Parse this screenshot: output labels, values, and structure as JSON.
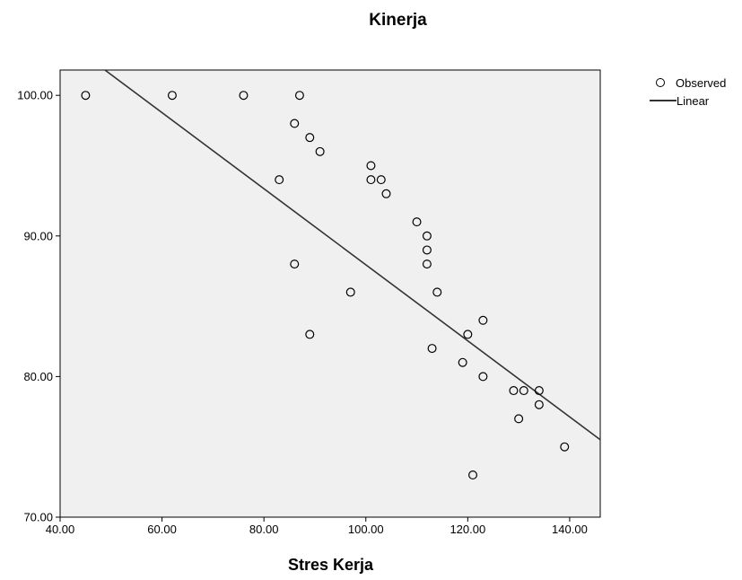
{
  "chart_data": {
    "type": "scatter",
    "title": "Kinerja",
    "xlabel": "Stres Kerja",
    "ylabel": "",
    "xlim": [
      40,
      146
    ],
    "ylim": [
      70,
      101.8
    ],
    "x_ticks": [
      40,
      60,
      80,
      100,
      120,
      140
    ],
    "x_tick_labels": [
      "40.00",
      "60.00",
      "80.00",
      "100.00",
      "120.00",
      "140.00"
    ],
    "y_ticks": [
      70,
      80,
      90,
      100
    ],
    "y_tick_labels": [
      "70.00",
      "80.00",
      "90.00",
      "100.00"
    ],
    "series": [
      {
        "name": "Observed",
        "marker": "circle-open",
        "points": [
          [
            45,
            100
          ],
          [
            62,
            100
          ],
          [
            76,
            100
          ],
          [
            87,
            100
          ],
          [
            86,
            98
          ],
          [
            89,
            97
          ],
          [
            91,
            96
          ],
          [
            83,
            94
          ],
          [
            101,
            95
          ],
          [
            101,
            94
          ],
          [
            103,
            94
          ],
          [
            104,
            93
          ],
          [
            110,
            91
          ],
          [
            112,
            90
          ],
          [
            112,
            89
          ],
          [
            112,
            88
          ],
          [
            86,
            88
          ],
          [
            97,
            86
          ],
          [
            114,
            86
          ],
          [
            123,
            84
          ],
          [
            89,
            83
          ],
          [
            120,
            83
          ],
          [
            113,
            82
          ],
          [
            119,
            81
          ],
          [
            123,
            80
          ],
          [
            129,
            79
          ],
          [
            131,
            79
          ],
          [
            134,
            79
          ],
          [
            134,
            78
          ],
          [
            130,
            77
          ],
          [
            139,
            75
          ],
          [
            121,
            73
          ]
        ]
      },
      {
        "name": "Linear",
        "type": "line",
        "intercept": 115.0,
        "slope": -0.2705
      }
    ],
    "legend": {
      "placement": "top-right",
      "entries": [
        "Observed",
        "Linear"
      ]
    },
    "grid": false,
    "colors": {
      "plot_background": "#f0f0f0",
      "marker_stroke": "#000000",
      "line": "#333333"
    }
  }
}
